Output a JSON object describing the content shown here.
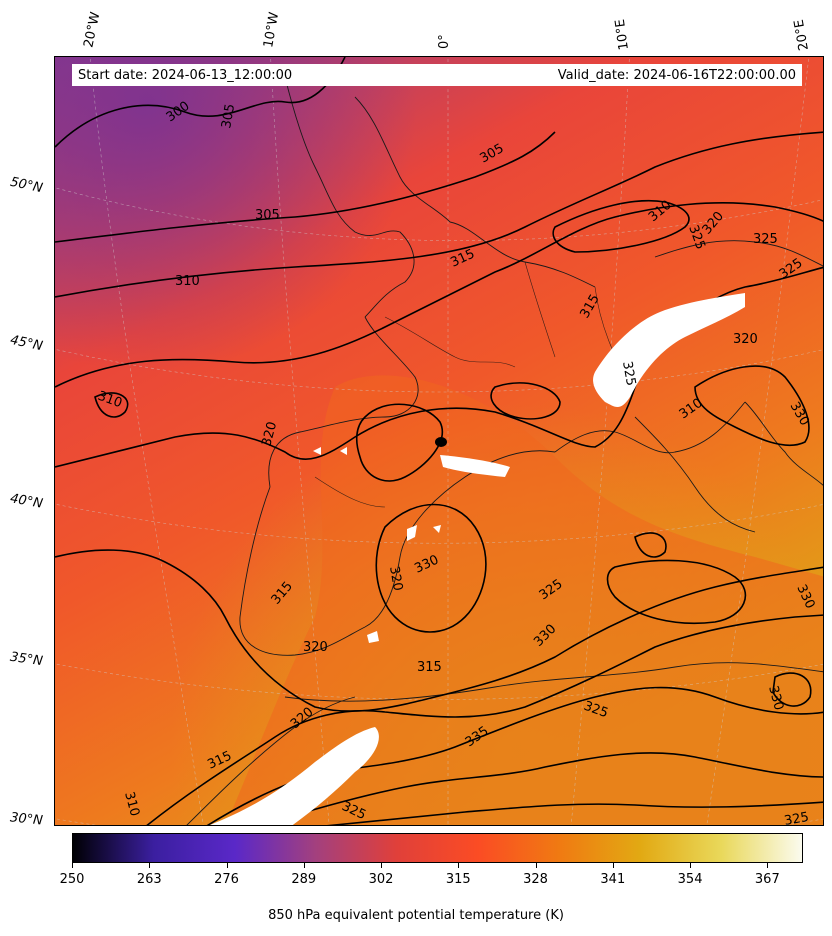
{
  "banner": {
    "start": "Start date: 2024-06-13_12:00:00",
    "valid": "Valid_date: 2024-06-16T22:00:00.00"
  },
  "lon_ticks": [
    "20°W",
    "10°W",
    "0°",
    "10°E",
    "20°E"
  ],
  "lat_ticks": [
    "50°N",
    "45°N",
    "40°N",
    "35°N",
    "30°N"
  ],
  "colorbar": {
    "label": "850 hPa equivalent potential temperature (K)",
    "ticks": [
      "250",
      "263",
      "276",
      "289",
      "302",
      "315",
      "328",
      "341",
      "354",
      "367"
    ],
    "range": [
      250,
      373
    ],
    "colormap": [
      "#000004",
      "#3b1fa0",
      "#5a28c8",
      "#a3407e",
      "#e0403a",
      "#fb4c24",
      "#f07a12",
      "#e2a913",
      "#e9d85a",
      "#fbfbee"
    ]
  },
  "contour_labels": [
    "300",
    "305",
    "305",
    "305",
    "310",
    "310",
    "310",
    "310",
    "310",
    "315",
    "315",
    "315",
    "315",
    "315",
    "320",
    "320",
    "320",
    "320",
    "320",
    "320",
    "325",
    "325",
    "325",
    "325",
    "325",
    "325",
    "330",
    "330",
    "330",
    "330",
    "330",
    "335",
    "325",
    "325"
  ],
  "colors": {
    "cold": "#8f3a86",
    "mid": "#e8473a",
    "warm": "#f26a1f",
    "hot": "#e0a216",
    "mask": "#ffffff"
  }
}
